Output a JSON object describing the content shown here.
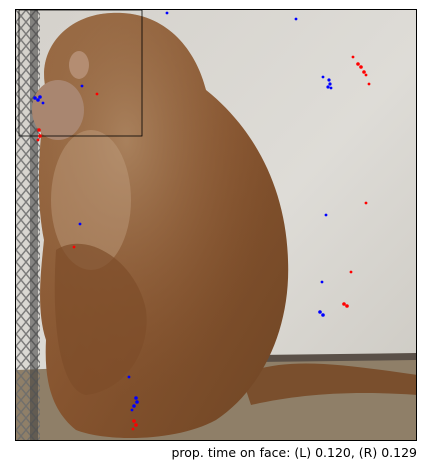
{
  "caption": "prop. time on face: (L) 0.120, (R) 0.129",
  "scene": {
    "subject": "rhesus macaque seated facing left beside chain-link fence",
    "background_color": "#d9d7d2",
    "fur_color": "#8a5a35",
    "floor_color": "#8f7f68",
    "fence_color": "#6c6c6c"
  },
  "colors": {
    "left_eye": "#0000ff",
    "right_eye": "#ff0000",
    "face_box": "#000000"
  }
}
